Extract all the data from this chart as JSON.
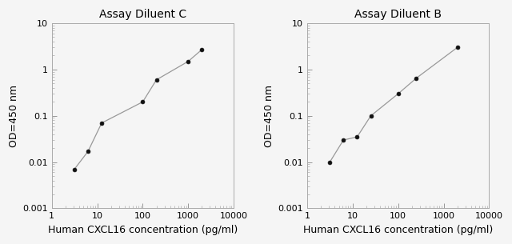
{
  "left_title": "Assay Diluent C",
  "right_title": "Assay Diluent B",
  "xlabel": "Human CXCL16 concentration (pg/ml)",
  "ylabel": "OD=450 nm",
  "left_x": [
    3.13,
    6.25,
    12.5,
    100,
    200,
    1000,
    2000
  ],
  "left_y": [
    0.007,
    0.017,
    0.07,
    0.2,
    0.6,
    1.5,
    2.7
  ],
  "right_x": [
    3.13,
    6.25,
    12.5,
    25,
    100,
    250,
    2000
  ],
  "right_y": [
    0.01,
    0.03,
    0.035,
    0.1,
    0.3,
    0.65,
    3.0
  ],
  "xlim": [
    1,
    10000
  ],
  "ylim": [
    0.001,
    10
  ],
  "line_color": "#999999",
  "marker_color": "#111111",
  "bg_color": "#f5f5f5",
  "title_fontsize": 10,
  "label_fontsize": 9,
  "tick_fontsize": 8
}
